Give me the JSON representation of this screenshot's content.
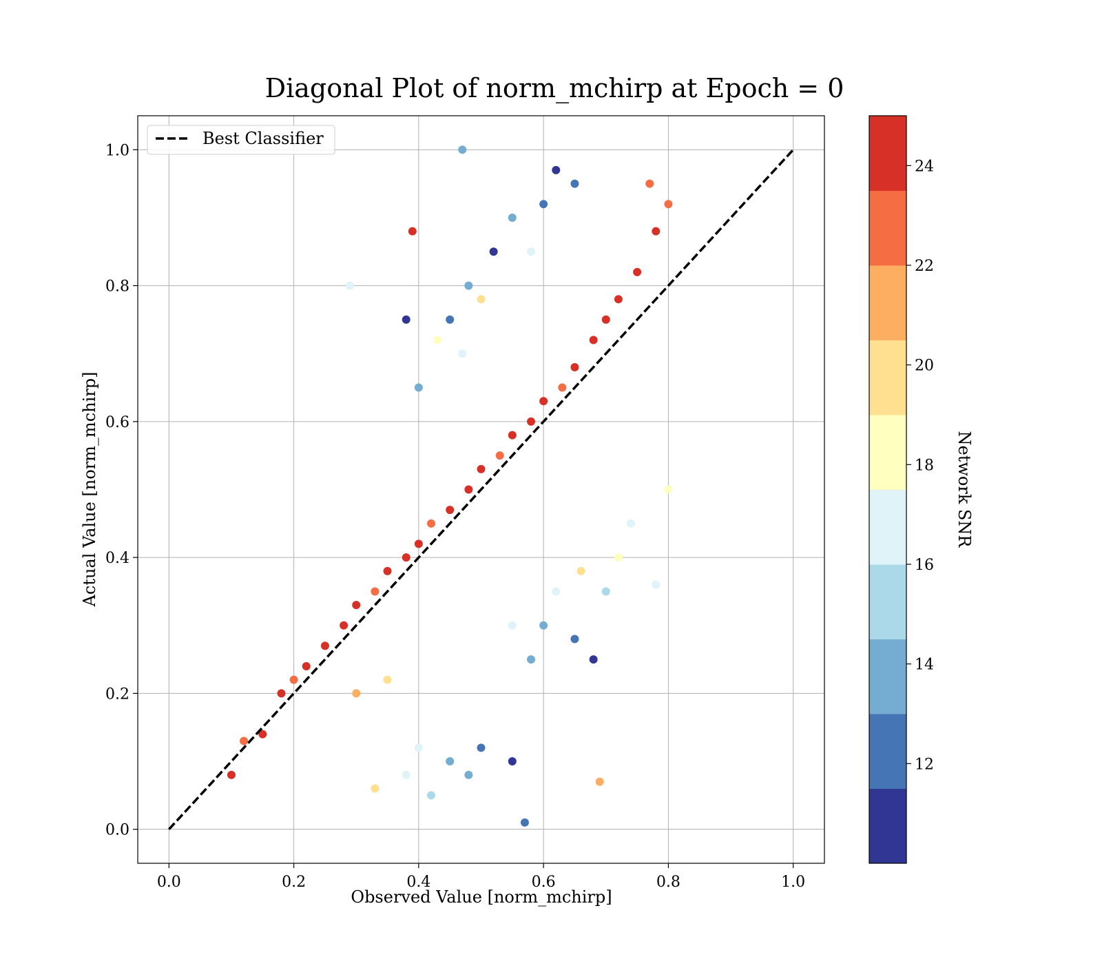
{
  "chart_data": {
    "type": "scatter",
    "title": "Diagonal Plot of norm_mchirp at Epoch = 0",
    "xlabel": "Observed Value [norm_mchirp]",
    "ylabel": "Actual Value [norm_mchirp]",
    "xlim": [
      -0.05,
      1.05
    ],
    "ylim": [
      -0.05,
      1.05
    ],
    "x_ticks": [
      0.0,
      0.2,
      0.4,
      0.6,
      0.8,
      1.0
    ],
    "y_ticks": [
      0.0,
      0.2,
      0.4,
      0.6,
      0.8,
      1.0
    ],
    "x_tick_labels": [
      "0.0",
      "0.2",
      "0.4",
      "0.6",
      "0.8",
      "1.0"
    ],
    "y_tick_labels": [
      "0.0",
      "0.2",
      "0.4",
      "0.6",
      "0.8",
      "1.0"
    ],
    "grid": true,
    "legend": {
      "placement": "upper-left",
      "entries": [
        {
          "label": "Best Classifier",
          "style": "dashed",
          "color": "#000000"
        }
      ]
    },
    "reference_line": {
      "name": "Best Classifier",
      "x": [
        0.0,
        1.0
      ],
      "y": [
        0.0,
        1.0
      ],
      "style": "dashed",
      "color": "#000000"
    },
    "colorbar": {
      "label": "Network SNR",
      "range": [
        10,
        25
      ],
      "ticks": [
        12,
        14,
        16,
        18,
        20,
        22,
        24
      ],
      "tick_labels": [
        "12",
        "14",
        "16",
        "18",
        "20",
        "22",
        "24"
      ],
      "colors": [
        "#313695",
        "#4575b4",
        "#74add1",
        "#abd9e9",
        "#e0f3f8",
        "#ffffbf",
        "#fee090",
        "#fdae61",
        "#f46d43",
        "#d73027",
        "#a50026"
      ],
      "boundaries": [
        10,
        11.5,
        13,
        14.5,
        16,
        17.5,
        19,
        20.5,
        22,
        23.5,
        25
      ]
    },
    "points": [
      [
        0.1,
        0.08,
        24
      ],
      [
        0.12,
        0.13,
        23
      ],
      [
        0.15,
        0.14,
        24
      ],
      [
        0.18,
        0.2,
        24
      ],
      [
        0.2,
        0.22,
        23
      ],
      [
        0.22,
        0.24,
        24
      ],
      [
        0.25,
        0.27,
        24
      ],
      [
        0.28,
        0.3,
        24
      ],
      [
        0.3,
        0.33,
        24
      ],
      [
        0.33,
        0.35,
        22
      ],
      [
        0.35,
        0.38,
        24
      ],
      [
        0.38,
        0.4,
        24
      ],
      [
        0.4,
        0.42,
        24
      ],
      [
        0.42,
        0.45,
        23
      ],
      [
        0.45,
        0.47,
        24
      ],
      [
        0.48,
        0.5,
        24
      ],
      [
        0.5,
        0.53,
        24
      ],
      [
        0.53,
        0.55,
        22
      ],
      [
        0.55,
        0.58,
        24
      ],
      [
        0.58,
        0.6,
        24
      ],
      [
        0.6,
        0.63,
        24
      ],
      [
        0.63,
        0.65,
        23
      ],
      [
        0.65,
        0.68,
        24
      ],
      [
        0.68,
        0.72,
        24
      ],
      [
        0.7,
        0.75,
        24
      ],
      [
        0.72,
        0.78,
        24
      ],
      [
        0.75,
        0.82,
        24
      ],
      [
        0.78,
        0.88,
        24
      ],
      [
        0.8,
        0.92,
        23
      ],
      [
        0.77,
        0.95,
        22
      ],
      [
        0.3,
        0.2,
        21
      ],
      [
        0.35,
        0.22,
        20
      ],
      [
        0.4,
        0.12,
        16
      ],
      [
        0.45,
        0.1,
        14
      ],
      [
        0.5,
        0.12,
        12
      ],
      [
        0.38,
        0.08,
        17
      ],
      [
        0.42,
        0.05,
        15
      ],
      [
        0.48,
        0.08,
        13
      ],
      [
        0.55,
        0.1,
        11
      ],
      [
        0.33,
        0.06,
        19
      ],
      [
        0.55,
        0.3,
        16
      ],
      [
        0.6,
        0.3,
        14
      ],
      [
        0.65,
        0.28,
        12
      ],
      [
        0.7,
        0.35,
        15
      ],
      [
        0.68,
        0.25,
        11
      ],
      [
        0.62,
        0.35,
        17
      ],
      [
        0.58,
        0.25,
        13
      ],
      [
        0.72,
        0.4,
        18
      ],
      [
        0.66,
        0.38,
        20
      ],
      [
        0.74,
        0.45,
        16
      ],
      [
        0.45,
        0.75,
        12
      ],
      [
        0.48,
        0.8,
        14
      ],
      [
        0.52,
        0.85,
        11
      ],
      [
        0.55,
        0.9,
        13
      ],
      [
        0.6,
        0.92,
        12
      ],
      [
        0.47,
        0.7,
        16
      ],
      [
        0.43,
        0.72,
        18
      ],
      [
        0.5,
        0.78,
        19
      ],
      [
        0.58,
        0.85,
        17
      ],
      [
        0.65,
        0.95,
        12
      ],
      [
        0.38,
        0.75,
        11
      ],
      [
        0.4,
        0.65,
        13
      ],
      [
        0.39,
        0.88,
        24
      ],
      [
        0.69,
        0.07,
        21
      ],
      [
        0.29,
        0.8,
        17
      ],
      [
        0.8,
        0.5,
        18
      ],
      [
        0.78,
        0.36,
        17
      ],
      [
        0.47,
        1.0,
        14
      ],
      [
        0.57,
        0.01,
        12
      ],
      [
        0.62,
        0.97,
        11
      ]
    ]
  }
}
